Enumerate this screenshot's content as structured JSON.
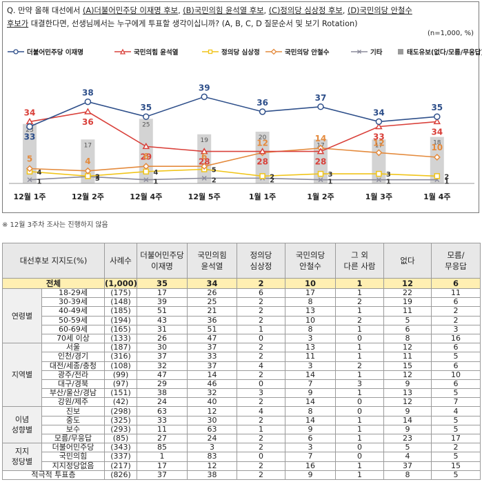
{
  "question": {
    "prefix": "Q. 만약 올해 대선에서 ",
    "a": "(A)더불어민주당 이재명 후보",
    "sep1": ", ",
    "b": "(B)국민의힘 윤석열 후보",
    "sep2": ", ",
    "c": "(C)정의당 심상정 후보",
    "sep3": ", ",
    "d1": "(D)국민의당 안철수",
    "d2": "후보가",
    "suffix": " 대결한다면, 선생님께서는 누구에게 투표할 생각이십니까? (A, B, C, D 질문순서 및 보기 Rotation)"
  },
  "n_note": "(n=1,000, %)",
  "footnote": "※ 12월 3주차 조사는 진행하지 않음",
  "chart_data": {
    "type": "line",
    "categories": [
      "12월 1주",
      "12월 2주",
      "12월 4주",
      "12월 5주",
      "1월 1주",
      "1월 2주",
      "1월 3주",
      "1월 4주"
    ],
    "series": [
      {
        "name": "더불어민주당 이재명",
        "color": "#2e4f8a",
        "values": [
          33,
          38,
          35,
          39,
          36,
          37,
          34,
          35
        ]
      },
      {
        "name": "국민의힘 윤석열",
        "color": "#d9403a",
        "values": [
          34,
          36,
          29,
          28,
          28,
          28,
          33,
          34
        ]
      },
      {
        "name": "정의당 심상정",
        "color": "#f0c419",
        "values": [
          4,
          2,
          4,
          5,
          2,
          3,
          3,
          2
        ]
      },
      {
        "name": "국민의당 안철수",
        "color": "#e48a3c",
        "values": [
          5,
          4,
          6,
          6,
          12,
          14,
          12,
          10
        ]
      },
      {
        "name": "기타",
        "color": "#8a8a9a",
        "values": [
          1,
          3,
          1,
          2,
          2,
          1,
          1,
          1
        ]
      },
      {
        "name": "태도유보(없다/모름/무응답)",
        "color": "#cfcfcf",
        "type": "bar",
        "values": [
          23,
          17,
          25,
          19,
          20,
          17,
          17,
          18
        ]
      }
    ],
    "legend_position": "top"
  },
  "table": {
    "headers": [
      "대선후보 지지도(%)",
      "",
      "사례수",
      "더불어민주당\n이재명",
      "국민의힘\n윤석열",
      "정의당\n심상정",
      "국민의당\n안철수",
      "그 외\n다른 사람",
      "없다",
      "모름/\n무응답"
    ],
    "total": {
      "label": "전체",
      "n": "(1,000)",
      "v": [
        "35",
        "34",
        "2",
        "10",
        "1",
        "12",
        "6"
      ]
    },
    "groups": [
      {
        "name": "연령별",
        "rows": [
          {
            "label": "18-29세",
            "n": "(175)",
            "v": [
              "17",
              "26",
              "6",
              "17",
              "1",
              "22",
              "11"
            ]
          },
          {
            "label": "30-39세",
            "n": "(148)",
            "v": [
              "39",
              "25",
              "2",
              "8",
              "2",
              "19",
              "6"
            ]
          },
          {
            "label": "40-49세",
            "n": "(185)",
            "v": [
              "51",
              "21",
              "2",
              "13",
              "1",
              "11",
              "2"
            ]
          },
          {
            "label": "50-59세",
            "n": "(194)",
            "v": [
              "43",
              "36",
              "2",
              "10",
              "2",
              "5",
              "2"
            ]
          },
          {
            "label": "60-69세",
            "n": "(165)",
            "v": [
              "31",
              "51",
              "1",
              "8",
              "1",
              "6",
              "3"
            ]
          },
          {
            "label": "70세 이상",
            "n": "(133)",
            "v": [
              "26",
              "47",
              "0",
              "3",
              "0",
              "8",
              "16"
            ]
          }
        ]
      },
      {
        "name": "지역별",
        "rows": [
          {
            "label": "서울",
            "n": "(187)",
            "v": [
              "30",
              "37",
              "2",
              "13",
              "1",
              "12",
              "6"
            ]
          },
          {
            "label": "인천/경기",
            "n": "(316)",
            "v": [
              "37",
              "33",
              "2",
              "11",
              "1",
              "11",
              "5"
            ]
          },
          {
            "label": "대전/세종/충청",
            "n": "(108)",
            "v": [
              "32",
              "37",
              "4",
              "3",
              "2",
              "15",
              "6"
            ]
          },
          {
            "label": "광주/전라",
            "n": "(99)",
            "v": [
              "47",
              "14",
              "2",
              "14",
              "1",
              "12",
              "10"
            ]
          },
          {
            "label": "대구/경북",
            "n": "(97)",
            "v": [
              "29",
              "46",
              "0",
              "7",
              "3",
              "9",
              "6"
            ]
          },
          {
            "label": "부산/울산/경남",
            "n": "(151)",
            "v": [
              "38",
              "32",
              "3",
              "9",
              "1",
              "13",
              "5"
            ]
          },
          {
            "label": "강원/제주",
            "n": "(42)",
            "v": [
              "24",
              "40",
              "2",
              "14",
              "0",
              "12",
              "7"
            ]
          }
        ]
      },
      {
        "name": "이념\n성향별",
        "rows": [
          {
            "label": "진보",
            "n": "(298)",
            "v": [
              "63",
              "12",
              "4",
              "8",
              "0",
              "9",
              "4"
            ]
          },
          {
            "label": "중도",
            "n": "(325)",
            "v": [
              "33",
              "30",
              "2",
              "14",
              "1",
              "14",
              "5"
            ]
          },
          {
            "label": "보수",
            "n": "(293)",
            "v": [
              "11",
              "63",
              "1",
              "9",
              "1",
              "9",
              "5"
            ]
          },
          {
            "label": "모름/무응답",
            "n": "(85)",
            "v": [
              "27",
              "24",
              "2",
              "6",
              "1",
              "23",
              "17"
            ]
          }
        ]
      },
      {
        "name": "지지\n정당별",
        "rows": [
          {
            "label": "더불어민주당",
            "n": "(343)",
            "v": [
              "85",
              "3",
              "2",
              "3",
              "0",
              "5",
              "2"
            ]
          },
          {
            "label": "국민의힘",
            "n": "(337)",
            "v": [
              "1",
              "83",
              "0",
              "7",
              "0",
              "4",
              "5"
            ]
          },
          {
            "label": "지지정당없음",
            "n": "(217)",
            "v": [
              "17",
              "12",
              "2",
              "16",
              "1",
              "37",
              "15"
            ]
          }
        ]
      }
    ],
    "last": {
      "label": "적극적 투표층",
      "n": "(826)",
      "v": [
        "37",
        "38",
        "2",
        "9",
        "1",
        "8",
        "5"
      ]
    }
  }
}
